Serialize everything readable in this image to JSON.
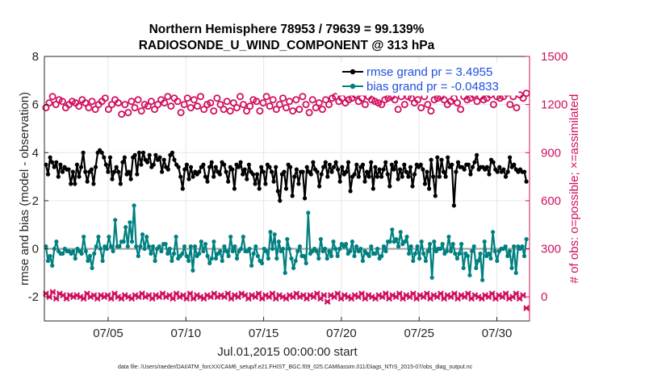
{
  "chart_data": {
    "type": "line",
    "title": "Northern Hemisphere 78953 / 79639 = 99.139%",
    "subtitle": "RADIOSONDE_U_WIND_COMPONENT @ 313 hPa",
    "xlabel": "Jul.01,2015 00:00:00 start",
    "ylabel_left": "rmse and bias (model - observation)",
    "ylabel_right": "# of obs: o=possible; ×=assimilated",
    "footer": "data file: /Users/raeder/DAI/ATM_forcXX/CAM6_setup/f.e21.FHIST_BGC.f09_025.CAM6assim.011/Diags_NTrS_2015-07/obs_diag_output.nc",
    "x_ticks": [
      "07/05",
      "07/10",
      "07/15",
      "07/20",
      "07/25",
      "07/30"
    ],
    "x_tick_days": [
      5,
      10,
      15,
      20,
      25,
      30
    ],
    "xlim": [
      0.9,
      32.1
    ],
    "ylim_left": [
      -3,
      8
    ],
    "yticks_left": [
      "-2",
      "0",
      "2",
      "4",
      "6",
      "8"
    ],
    "ylim_right": [
      -150,
      1500
    ],
    "yticks_right": [
      "0",
      "300",
      "600",
      "900",
      "1200",
      "1500"
    ],
    "grid": true,
    "legend": {
      "position": "top-right",
      "entries": [
        "rmse grand pr = 3.4955",
        "bias grand pr = -0.04833"
      ]
    },
    "colors": {
      "rmse": "#000000",
      "bias": "#008080",
      "obs": "#d0105f",
      "zero_line": "#a0a0a0",
      "legend_text": "#1f4fe0"
    },
    "series": [
      {
        "name": "rmse",
        "axis": "left",
        "values": [
          3.5,
          3.1,
          3.8,
          3.6,
          3.4,
          3.6,
          3.0,
          3.5,
          3.2,
          3.4,
          3.3,
          3.3,
          2.7,
          3.2,
          2.7,
          3.5,
          3.0,
          3.4,
          4.0,
          3.2,
          2.8,
          3.2,
          3.3,
          2.7,
          3.4,
          4.0,
          4.1,
          4.0,
          3.8,
          3.5,
          3.2,
          3.8,
          2.9,
          3.2,
          3.4,
          3.2,
          2.7,
          3.6,
          3.8,
          3.1,
          3.2,
          2.9,
          3.8,
          3.9,
          3.1,
          4.0,
          3.5,
          4.0,
          3.7,
          3.6,
          3.9,
          3.4,
          3.5,
          3.9,
          3.7,
          3.8,
          3.2,
          3.7,
          3.4,
          3.3,
          3.9,
          4.0,
          3.7,
          3.5,
          3.4,
          3.0,
          2.5,
          3.3,
          3.5,
          2.9,
          3.4,
          3.0,
          3.2,
          3.1,
          3.2,
          3.4,
          3.5,
          3.0,
          2.8,
          3.4,
          3.6,
          3.0,
          3.4,
          3.2,
          3.1,
          3.6,
          3.5,
          3.2,
          2.8,
          3.4,
          3.3,
          2.5,
          3.5,
          3.4,
          3.6,
          3.1,
          3.3,
          2.9,
          3.5,
          3.2,
          3.1,
          2.7,
          3.1,
          2.5,
          3.4,
          3.2,
          2.7,
          3.5,
          3.4,
          3.2,
          2.8,
          3.4,
          2.4,
          2.0,
          3.1,
          3.2,
          2.5,
          3.5,
          3.4,
          2.2,
          3.0,
          3.3,
          2.7,
          3.2,
          3.2,
          2.1,
          3.4,
          3.2,
          3.1,
          3.6,
          3.3,
          3.2,
          2.6,
          3.1,
          3.4,
          3.6,
          3.0,
          3.5,
          3.2,
          3.4,
          3.6,
          3.3,
          2.8,
          3.4,
          3.1,
          3.2,
          3.6,
          2.4,
          3.0,
          3.1,
          3.5,
          3.0,
          3.4,
          3.5,
          2.8,
          3.2,
          3.0,
          3.6,
          2.5,
          3.4,
          3.0,
          3.3,
          3.0,
          3.3,
          3.6,
          3.1,
          2.6,
          3.5,
          3.3,
          3.6,
          2.9,
          3.3,
          3.0,
          3.5,
          3.2,
          3.0,
          3.4,
          2.6,
          3.1,
          3.5,
          3.4,
          3.5,
          3.3,
          2.7,
          3.2,
          2.5,
          3.7,
          3.0,
          2.2,
          3.8,
          3.0,
          3.7,
          3.2,
          3.0,
          3.8,
          3.4,
          3.5,
          1.8,
          3.2,
          3.6,
          3.4,
          3.4,
          3.3,
          3.5,
          3.5,
          3.1,
          3.4,
          3.6,
          3.9,
          3.3,
          3.4,
          3.4,
          3.3,
          3.4,
          3.1,
          3.7,
          3.6,
          3.3,
          3.2,
          3.4,
          3.2,
          3.3,
          3.0,
          3.2,
          3.8,
          3.4,
          3.5,
          3.3,
          3.2,
          3.3,
          3.2,
          3.2,
          2.8
        ]
      },
      {
        "name": "bias",
        "axis": "left",
        "values": [
          0.1,
          -0.5,
          -0.3,
          -0.7,
          0.0,
          0.3,
          -0.1,
          -0.2,
          -0.2,
          0.0,
          -0.1,
          -0.1,
          -0.2,
          -0.1,
          -0.4,
          0.0,
          -0.1,
          -0.2,
          0.5,
          -0.1,
          -0.5,
          -0.3,
          -0.8,
          -0.2,
          0.1,
          0.5,
          0.0,
          -0.5,
          0.1,
          0.0,
          0.5,
          0.1,
          -0.1,
          1.2,
          0.1,
          0.1,
          0.3,
          0.3,
          0.9,
          0.1,
          1.1,
          0.3,
          1.8,
          0.1,
          -0.3,
          0.1,
          0.6,
          0.0,
          0.5,
          0.1,
          -0.2,
          0.1,
          -0.5,
          0.0,
          0.1,
          -0.1,
          0.2,
          0.2,
          -0.2,
          0.0,
          -0.5,
          -0.2,
          0.5,
          -0.4,
          -0.3,
          -0.2,
          0.1,
          -0.3,
          -0.5,
          0.1,
          -0.9,
          0.1,
          -0.3,
          -0.2,
          0.3,
          -0.1,
          0.2,
          -0.3,
          -0.6,
          -0.4,
          0.3,
          -0.4,
          -0.2,
          -0.1,
          -0.5,
          0.1,
          -0.1,
          -0.3,
          0.5,
          -0.1,
          0.1,
          -0.4,
          -0.1,
          0.0,
          0.5,
          -0.1,
          -0.1,
          0.0,
          -0.7,
          -0.2,
          0.1,
          -0.3,
          -0.5,
          -0.6,
          0.0,
          -0.1,
          -0.4,
          0.7,
          0.0,
          0.6,
          -0.4,
          0.3,
          -0.1,
          0.0,
          -1.0,
          0.4,
          0.0,
          -0.4,
          -0.8,
          -0.5,
          -0.1,
          0.1,
          -0.3,
          -0.3,
          -0.6,
          1.5,
          -0.2,
          -0.1,
          0.0,
          -0.1,
          -0.4,
          0.4,
          -0.1,
          0.0,
          -0.4,
          -0.1,
          -0.3,
          0.3,
          0.0,
          -0.3,
          0.0,
          0.2,
          0.1,
          0.2,
          -0.2,
          -0.1,
          0.3,
          -0.3,
          0.1,
          -0.1,
          0.0,
          -0.5,
          -0.1,
          -0.2,
          -0.3,
          0.1,
          -0.2,
          -0.2,
          0.0,
          -0.4,
          -0.3,
          0.1,
          -0.1,
          0.3,
          0.3,
          0.8,
          0.3,
          0.4,
          0.1,
          0.7,
          0.2,
          0.3,
          0.5,
          -0.2,
          0.1,
          -0.5,
          -0.2,
          0.1,
          -0.4,
          0.3,
          -0.2,
          -0.5,
          -0.1,
          0.2,
          -1.2,
          0.3,
          -0.1,
          0.0,
          0.0,
          0.2,
          -0.2,
          -0.1,
          0.5,
          -0.1,
          0.2,
          -0.2,
          -0.4,
          -0.2,
          0.2,
          -0.8,
          -0.2,
          -0.3,
          -1.1,
          -0.1,
          0.1,
          -0.8,
          -0.5,
          -0.2,
          -1.3,
          0.3,
          -0.3,
          -0.2,
          -0.4,
          0.7,
          -0.1,
          -0.5,
          -0.1,
          0.0,
          0.0,
          0.1,
          -0.3,
          -0.1,
          -0.8,
          0.1,
          -1.0,
          0.1,
          0.0,
          0.1,
          -0.3,
          0.4
        ]
      },
      {
        "name": "possible",
        "axis": "right",
        "values": [
          1180,
          1210,
          1250,
          1200,
          1230,
          1220,
          1180,
          1200,
          1220,
          1210,
          1190,
          1230,
          1210,
          1180,
          1220,
          1170,
          1200,
          1220,
          1240,
          1170,
          1200,
          1230,
          1210,
          1140,
          1200,
          1150,
          1220,
          1180,
          1230,
          1160,
          1200,
          1190,
          1220,
          1170,
          1200,
          1230,
          1210,
          1250,
          1190,
          1240,
          1220,
          1150,
          1200,
          1240,
          1180,
          1230,
          1190,
          1250,
          1170,
          1200,
          1210,
          1160,
          1240,
          1200,
          1170,
          1220,
          1160,
          1210,
          1180,
          1250,
          1200,
          1160,
          1190,
          1230,
          1220,
          1160,
          1210,
          1250,
          1190,
          1230,
          1170,
          1200,
          1240,
          1180,
          1220,
          1160,
          1230,
          1170,
          1250,
          1200,
          1150,
          1230,
          1180,
          1210,
          1170,
          1230,
          1200,
          1240,
          1250,
          1220,
          1240,
          1210,
          1230,
          1240,
          1260,
          1220,
          1240,
          1200,
          1250,
          1230,
          1220,
          1210,
          1200,
          1230,
          1240,
          1250,
          1230,
          1170,
          1250,
          1200,
          1250,
          1240,
          1210,
          1230,
          1180,
          1250,
          1200,
          1160,
          1230,
          1240,
          1250,
          1230,
          1200,
          1220,
          1240,
          1210,
          1170,
          1250,
          1230,
          1240,
          1260,
          1220,
          1250,
          1230,
          1240,
          1260,
          1200,
          1250,
          1240,
          1250,
          1270,
          1200,
          1250,
          1180,
          1260,
          1240,
          1270
        ]
      },
      {
        "name": "assimilated",
        "axis": "right",
        "values": [
          20,
          0,
          30,
          -10,
          20,
          10,
          -10,
          10,
          0,
          10,
          0,
          -10,
          20,
          0,
          10,
          -10,
          10,
          0,
          10,
          -10,
          20,
          0,
          -10,
          10,
          0,
          -10,
          10,
          0,
          20,
          0,
          10,
          -10,
          10,
          0,
          20,
          0,
          10,
          -10,
          20,
          0,
          10,
          -10,
          20,
          -10,
          10,
          0,
          -10,
          10,
          0,
          20,
          0,
          10,
          0,
          20,
          -10,
          10,
          0,
          20,
          10,
          -10,
          10,
          0,
          20,
          -10,
          10,
          0,
          20,
          -10,
          10,
          0,
          -10,
          10,
          0,
          20,
          0,
          10,
          -10,
          10,
          0,
          20,
          -10,
          10,
          -30,
          10,
          0,
          20,
          -10,
          10,
          0,
          -10,
          10,
          0,
          20,
          -10,
          10,
          0,
          -10,
          10,
          0,
          20,
          -10,
          10,
          0,
          20,
          -10,
          10,
          0,
          20,
          -10,
          10,
          0,
          20,
          -10,
          10,
          0,
          20,
          -10,
          10,
          0,
          20,
          -10,
          10,
          0,
          20,
          -10,
          10,
          0,
          -10,
          10,
          0,
          20,
          -10,
          10,
          0,
          20,
          -10,
          0,
          20,
          -10,
          10,
          -70
        ]
      }
    ]
  }
}
